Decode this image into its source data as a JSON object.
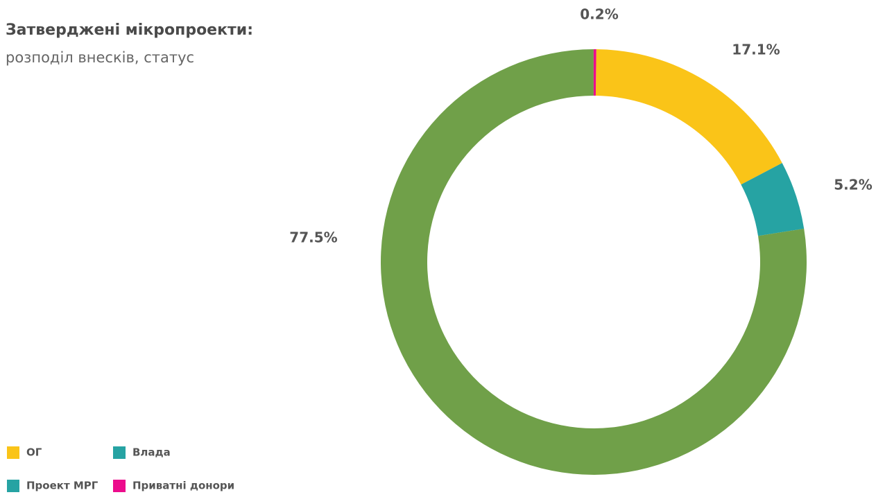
{
  "chart_data": {
    "type": "donut",
    "title": "Затверджені мікропроекти:",
    "subtitle": "розподіл внесків, статус",
    "categories": [
      "ОГ",
      "Влада",
      "Проект МРГ",
      "Приватні донори"
    ],
    "values": [
      17.1,
      5.2,
      77.5,
      0.2
    ],
    "value_labels": [
      "17.1%",
      "5.2%",
      "77.5%",
      "0.2%"
    ],
    "colors": [
      "#fac418",
      "#26a3a3",
      "#70a049",
      "#ec0c8c"
    ],
    "legend_colors": [
      "#fac418",
      "#26a3a3",
      "#26a3a3",
      "#ec0c8c"
    ]
  }
}
